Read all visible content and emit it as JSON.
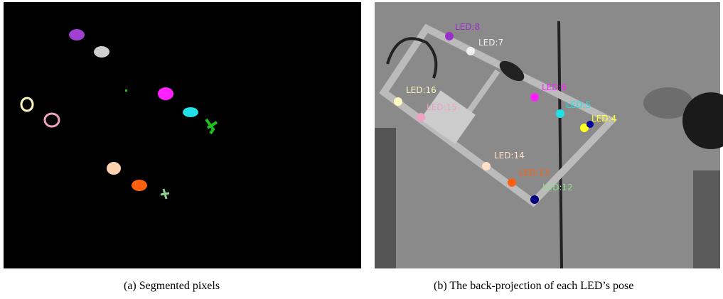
{
  "figure": {
    "panels": [
      {
        "caption": "(a) Segmented pixels"
      },
      {
        "caption": "(b) The back-projection of each LED’s pose",
        "led_labels": [
          "LED:8",
          "LED:7",
          "LED:6",
          "LED:5",
          "LED:4",
          "LED:16",
          "LED:15",
          "LED:14",
          "LED:13",
          "LED:12"
        ]
      }
    ]
  }
}
